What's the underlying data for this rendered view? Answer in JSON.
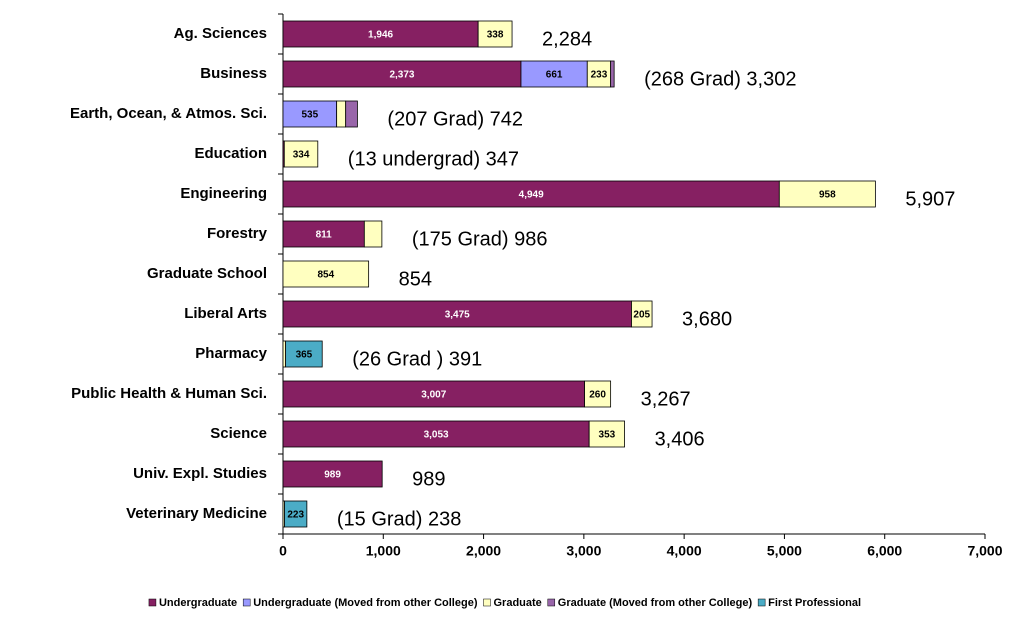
{
  "chart_data": {
    "type": "bar",
    "orientation": "horizontal",
    "stacked": true,
    "categories": [
      "Ag. Sciences",
      "Business",
      "Earth, Ocean, & Atmos. Sci.",
      "Education",
      "Engineering",
      "Forestry",
      "Graduate School",
      "Liberal Arts",
      "Pharmacy",
      "Public Health & Human Sci.",
      "Science",
      "Univ. Expl. Studies",
      "Veterinary Medicine"
    ],
    "series": [
      {
        "name": "Undergraduate",
        "color": "#862062",
        "values": [
          1946,
          2373,
          null,
          13,
          4949,
          811,
          null,
          3475,
          null,
          3007,
          3053,
          989,
          null
        ],
        "value_labels": [
          "1,946",
          "2,373",
          null,
          null,
          "4,949",
          "811",
          null,
          "3,475",
          null,
          "3,007",
          "3,053",
          "989",
          null
        ]
      },
      {
        "name": "Undergraduate (Moved from other College)",
        "color": "#9999ff",
        "values": [
          null,
          661,
          535,
          null,
          null,
          null,
          null,
          null,
          null,
          null,
          null,
          null,
          null
        ],
        "value_labels": [
          null,
          "661",
          "535",
          null,
          null,
          null,
          null,
          null,
          null,
          null,
          null,
          null,
          null
        ]
      },
      {
        "name": "Graduate",
        "color": "#ffffc0",
        "values": [
          338,
          233,
          90,
          334,
          958,
          175,
          854,
          205,
          26,
          260,
          353,
          null,
          15
        ],
        "value_labels": [
          "338",
          "233",
          null,
          "334",
          "958",
          null,
          "854",
          "205",
          null,
          "260",
          "353",
          null,
          null
        ]
      },
      {
        "name": "Graduate (Moved from other College)",
        "color": "#9966aa",
        "values": [
          null,
          35,
          117,
          null,
          null,
          null,
          null,
          null,
          null,
          null,
          null,
          null,
          null
        ],
        "value_labels": [
          null,
          null,
          null,
          null,
          null,
          null,
          null,
          null,
          null,
          null,
          null,
          null,
          null
        ]
      },
      {
        "name": "First Professional",
        "color": "#4bacc6",
        "values": [
          null,
          null,
          null,
          null,
          null,
          null,
          null,
          null,
          365,
          null,
          null,
          null,
          223
        ],
        "value_labels": [
          null,
          null,
          null,
          null,
          null,
          null,
          null,
          null,
          "365",
          null,
          null,
          null,
          "223"
        ]
      }
    ],
    "annotations": [
      "2,284",
      "(268  Grad) 3,302",
      "(207 Grad) 742",
      "(13 undergrad) 347",
      "5,907",
      "(175 Grad) 986",
      "854",
      "3,680",
      "(26 Grad ) 391",
      "3,267",
      "3,406",
      "989",
      "(15 Grad) 238"
    ],
    "xlim": [
      0,
      7000
    ],
    "xticks": [
      0,
      {
        "value": 1000,
        "label": "1,000"
      },
      {
        "value": 2000,
        "label": "2,000"
      },
      {
        "value": 3000,
        "label": "3,000"
      },
      {
        "value": 4000,
        "label": "4,000"
      },
      {
        "value": 5000,
        "label": "5,000"
      },
      {
        "value": 6000,
        "label": "6,000"
      },
      {
        "value": 7000,
        "label": "7,000"
      }
    ],
    "grid": false,
    "legend": "bottom"
  }
}
